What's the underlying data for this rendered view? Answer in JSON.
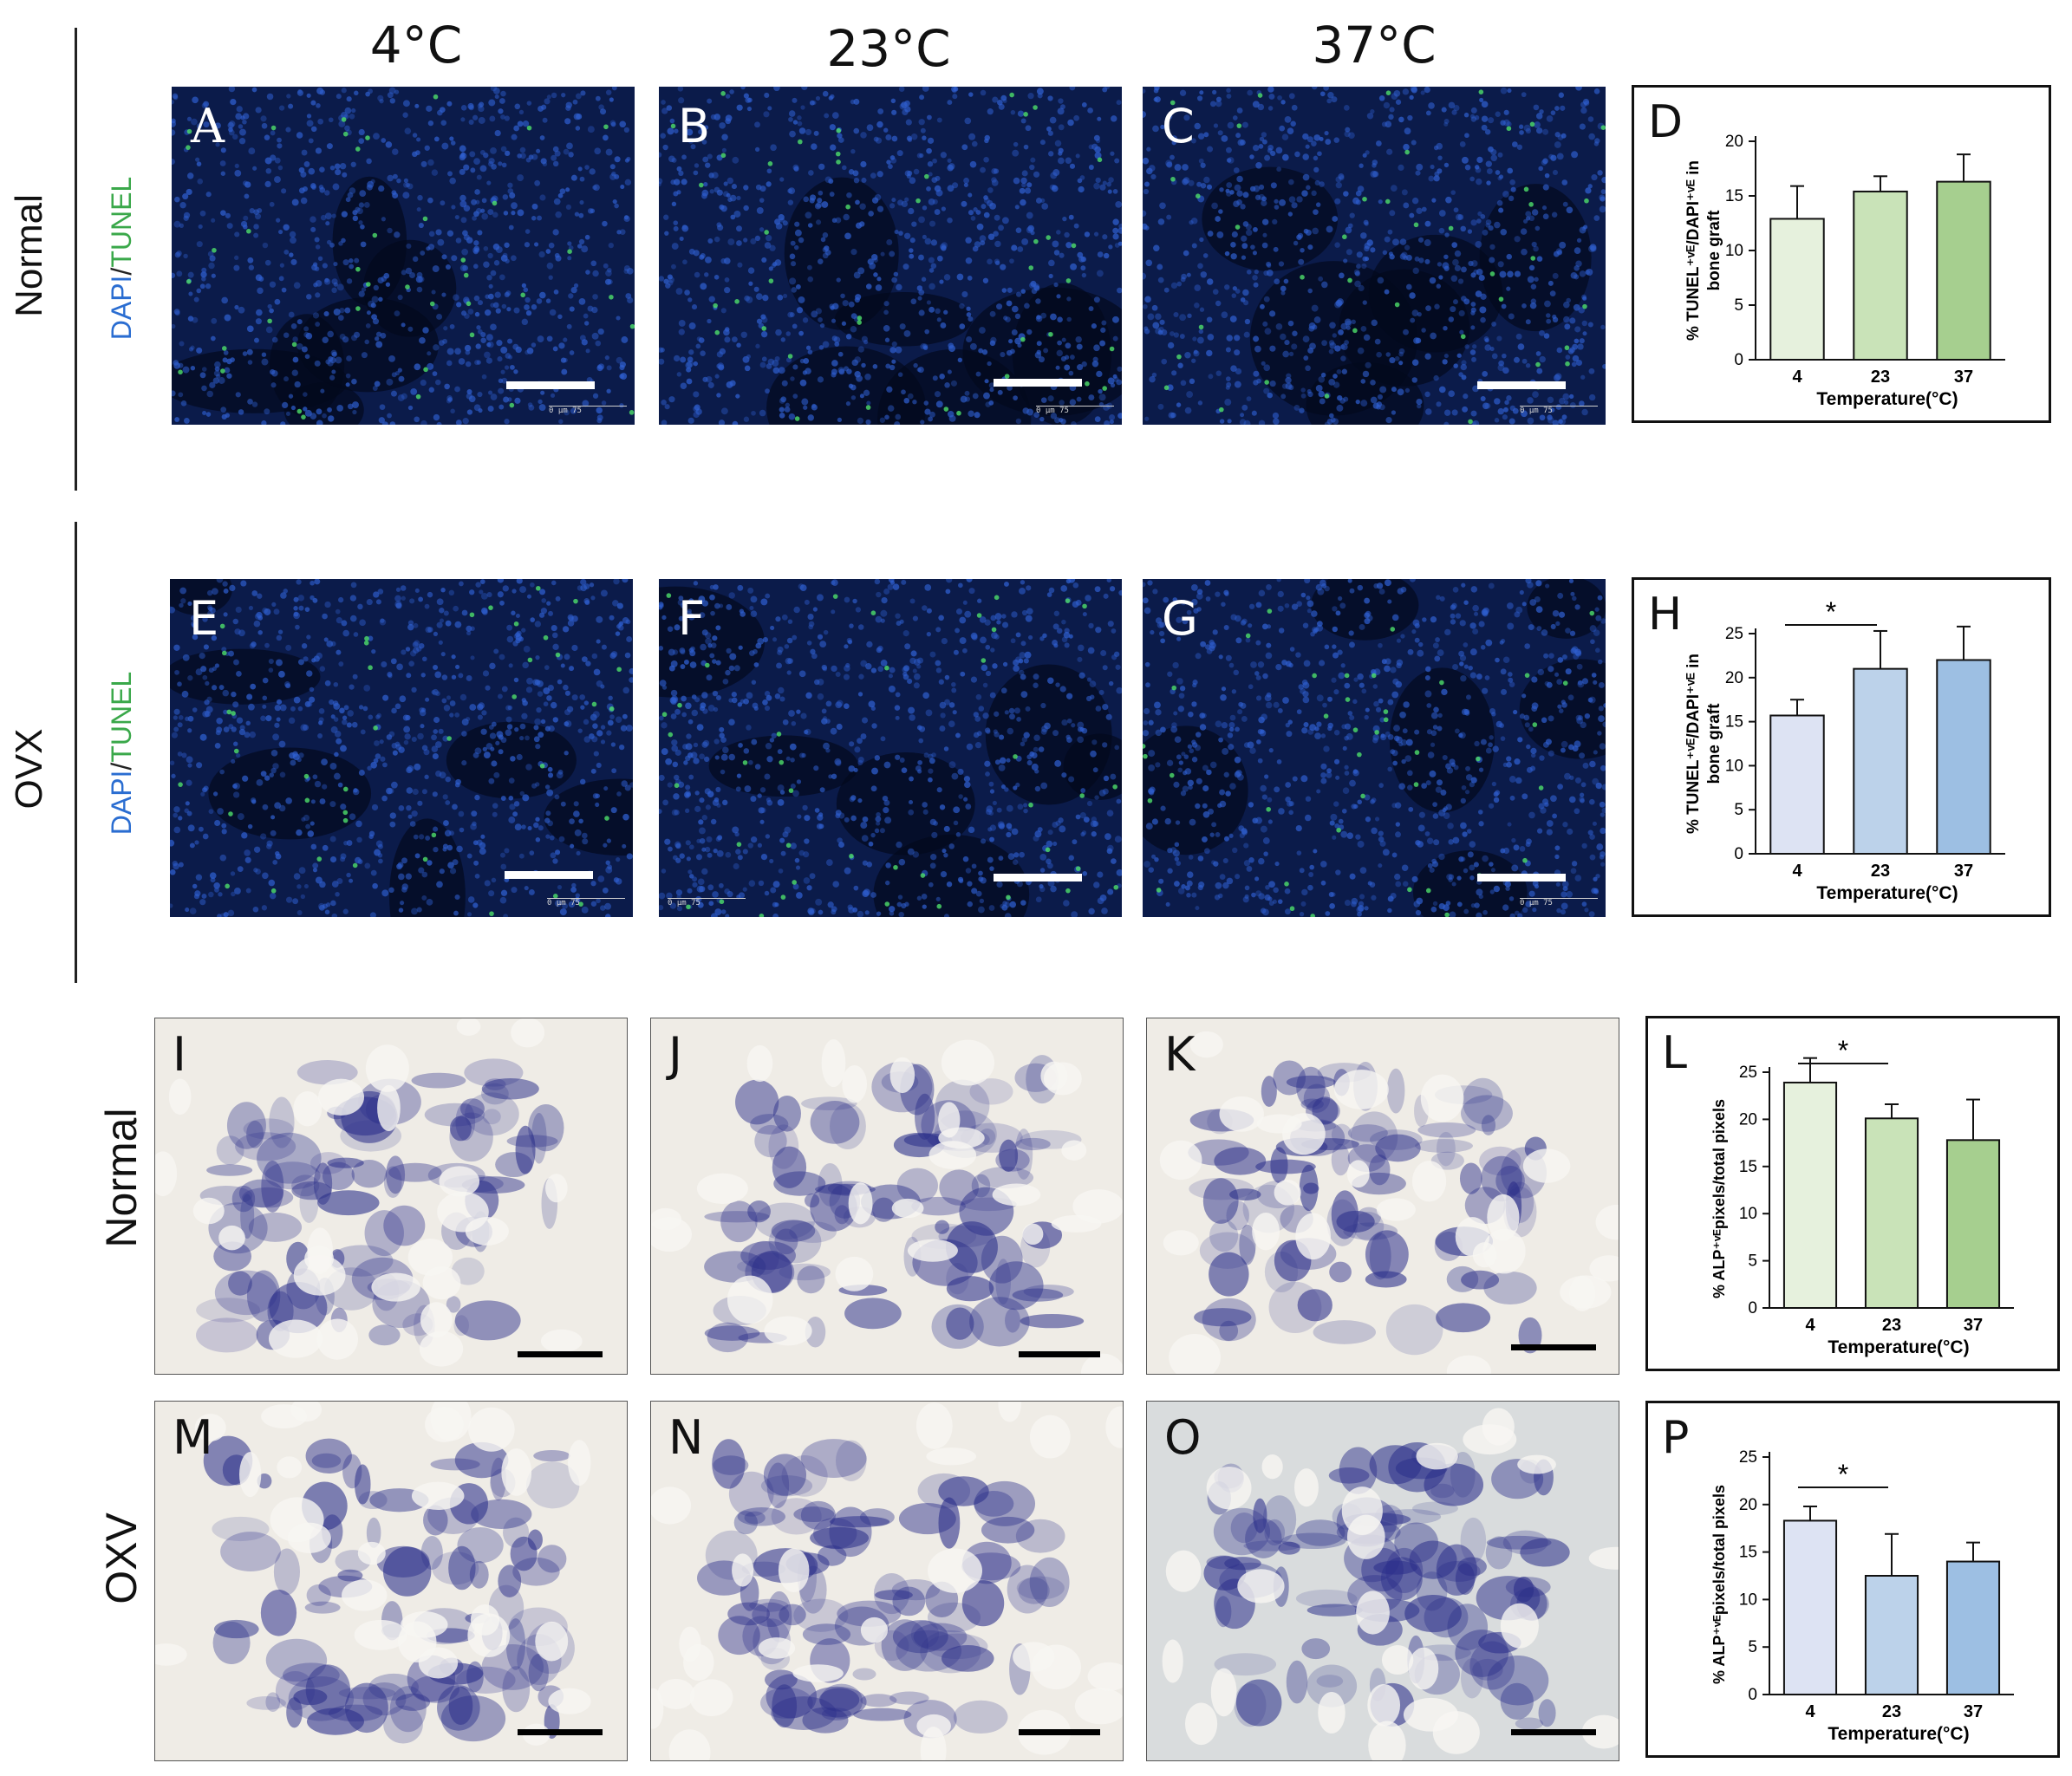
{
  "column_headers": [
    "4°C",
    "23°C",
    "37°C"
  ],
  "row_labels": {
    "tunel_normal": "Normal",
    "tunel_ovx": "OVX",
    "alp_normal": "Normal",
    "alp_ovx": "OXV"
  },
  "stain_label": {
    "dapi": "DAPI",
    "slash": "/",
    "tunel": "TUNEL"
  },
  "panel_letters": {
    "A": "A",
    "B": "B",
    "C": "C",
    "E": "E",
    "F": "F",
    "G": "G",
    "I": "I",
    "J": "J",
    "K": "K",
    "M": "M",
    "N": "N",
    "O": "O"
  },
  "scale_text": "0   μm   75",
  "colors": {
    "fluo_bg": "#0b1b4a",
    "nuclei": "#2f5fd0",
    "tunel_dots": "#4ee06a",
    "alp_stain": "#2b2f8a",
    "alp_bg": "#efece6",
    "normal_bars": [
      "#e6f1dd",
      "#c9e3b8",
      "#a6cf8f"
    ],
    "ovx_bars": [
      "#dde3f3",
      "#bcd2ea",
      "#9dbfe3"
    ]
  },
  "chart_data": [
    {
      "panel": "D",
      "type": "bar",
      "categories": [
        "4",
        "23",
        "37"
      ],
      "values": [
        12.9,
        15.4,
        16.3
      ],
      "errors": [
        3.0,
        1.4,
        2.5
      ],
      "ylim": [
        0,
        20
      ],
      "yticks": [
        "0",
        "5",
        "10",
        "15",
        "20"
      ],
      "ylabel_line1": "% TUNEL⁺ᵛᴱ/DAPI⁺ᵛᴱ in",
      "ylabel_line2": "bone graft",
      "xlabel": "Temperature(°C)",
      "significance": null
    },
    {
      "panel": "H",
      "type": "bar",
      "categories": [
        "4",
        "23",
        "37"
      ],
      "values": [
        15.7,
        21.0,
        22.0
      ],
      "errors": [
        1.8,
        4.3,
        3.8
      ],
      "ylim": [
        0,
        25
      ],
      "yticks": [
        "0",
        "5",
        "10",
        "15",
        "20",
        "25"
      ],
      "ylabel_line1": "% TUNEL⁺ᵛᴱ/DAPI⁺ᵛᴱ in",
      "ylabel_line2": "bone graft",
      "xlabel": "Temperature(°C)",
      "significance": {
        "from": 0,
        "to": 1,
        "mark": "*"
      }
    },
    {
      "panel": "L",
      "type": "bar",
      "categories": [
        "4",
        "23",
        "37"
      ],
      "values": [
        23.9,
        20.1,
        17.8
      ],
      "errors": [
        2.6,
        1.5,
        4.3
      ],
      "ylim": [
        0,
        25
      ],
      "yticks": [
        "0",
        "5",
        "10",
        "15",
        "20",
        "25"
      ],
      "ylabel_line1": "% ALP⁺ᵛᴱpixels/total pixels",
      "ylabel_line2": "",
      "xlabel": "Temperature(°C)",
      "significance": {
        "from": 0,
        "to": 1,
        "mark": "*"
      }
    },
    {
      "panel": "P",
      "type": "bar",
      "categories": [
        "4",
        "23",
        "37"
      ],
      "values": [
        18.3,
        12.5,
        14.0
      ],
      "errors": [
        1.5,
        4.4,
        2.0
      ],
      "ylim": [
        0,
        25
      ],
      "yticks": [
        "0",
        "5",
        "10",
        "15",
        "20",
        "25"
      ],
      "ylabel_line1": "% ALP⁺ᵛᴱpixels/total pixels",
      "ylabel_line2": "",
      "xlabel": "Temperature(°C)",
      "significance": {
        "from": 0,
        "to": 1,
        "mark": "*"
      }
    }
  ]
}
